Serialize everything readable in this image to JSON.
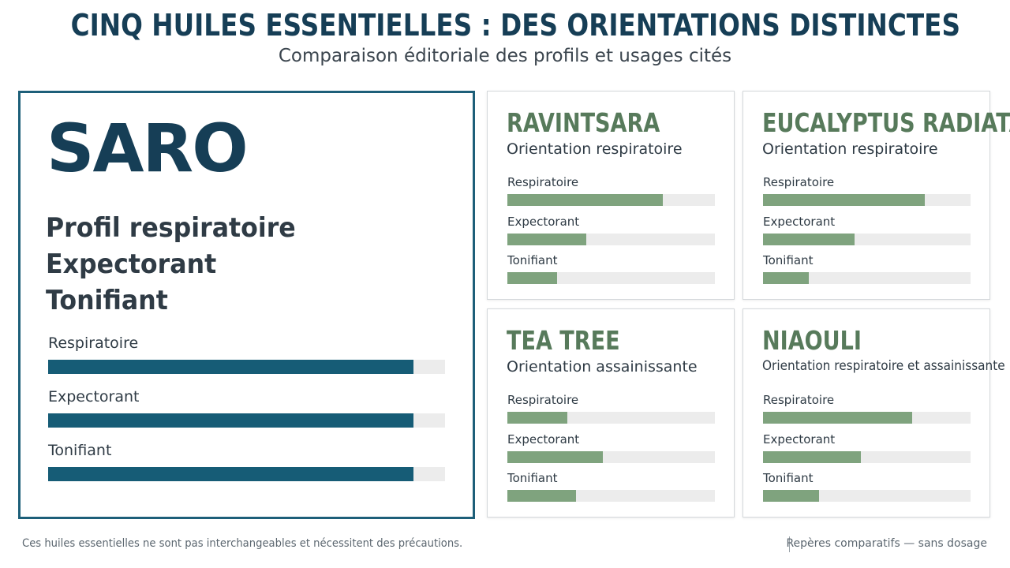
{
  "header": {
    "title": "CINQ HUILES ESSENTIELLES : DES ORIENTATIONS DISTINCTES",
    "subtitle": "Comparaison éditoriale des profils et usages cités"
  },
  "colors": {
    "title": "#163e56",
    "feature_bar": "#165c76",
    "card_bar": "#7fa37e",
    "card_name": "#577a5b",
    "track": "#ececec"
  },
  "chart_data": {
    "type": "bar",
    "orientation": "horizontal",
    "categories": [
      "Respiratoire",
      "Expectorant",
      "Tonifiant"
    ],
    "scale": [
      0,
      1
    ],
    "oils": [
      {
        "name": "SARO",
        "traits": [
          "Profil respiratoire",
          "Expectorant",
          "Tonifiant"
        ],
        "values": [
          0.92,
          0.92,
          0.92
        ]
      },
      {
        "name": "RAVINTSARA",
        "orientation": "Orientation respiratoire",
        "values": [
          0.75,
          0.38,
          0.24
        ]
      },
      {
        "name": "EUCALYPTUS RADIATA",
        "orientation": "Orientation respiratoire",
        "values": [
          0.78,
          0.44,
          0.22
        ]
      },
      {
        "name": "TEA TREE",
        "orientation": "Orientation assainissante",
        "values": [
          0.29,
          0.46,
          0.33
        ]
      },
      {
        "name": "NIAOULI",
        "orientation": "Orientation respiratoire et assainissante",
        "values": [
          0.72,
          0.47,
          0.27
        ]
      }
    ]
  },
  "footer": {
    "disclaimer": "Ces huiles essentielles ne sont pas interchangeables et nécessitent des précautions.",
    "note": "Repères comparatifs — sans dosage"
  }
}
